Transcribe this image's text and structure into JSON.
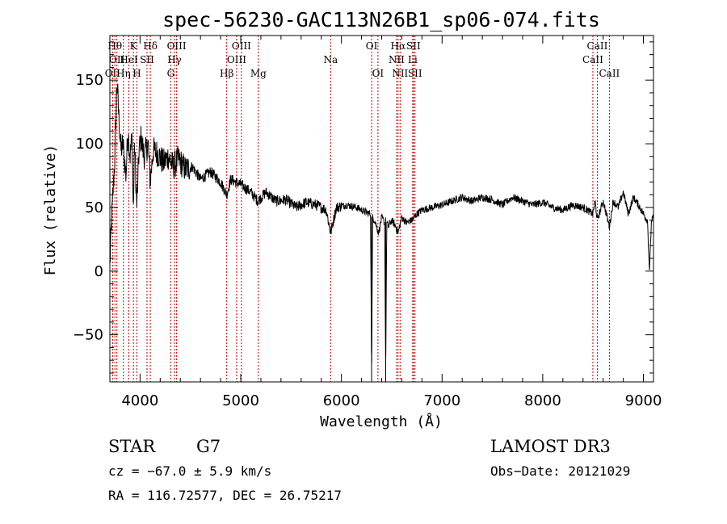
{
  "chart_data": {
    "type": "line",
    "title": "spec-56230-GAC113N26B1_sp06-074.fits",
    "xlabel": "Wavelength (Å)",
    "ylabel": "Flux (relative)",
    "xlim": [
      3700,
      9100
    ],
    "ylim": [
      -87,
      185
    ],
    "xticks": [
      4000,
      5000,
      6000,
      7000,
      8000,
      9000
    ],
    "xtick_labels": [
      "4000",
      "5000",
      "6000",
      "7000",
      "8000",
      "9000"
    ],
    "yticks": [
      -50,
      0,
      50,
      100,
      150
    ],
    "ytick_labels": [
      "−50",
      "0",
      "50",
      "100",
      "150"
    ],
    "series": [
      {
        "name": "flux",
        "x": [
          3700,
          3710,
          3730,
          3750,
          3770,
          3790,
          3810,
          3830,
          3860,
          3880,
          3900,
          3920,
          3933,
          3945,
          3968,
          3990,
          4010,
          4040,
          4080,
          4101,
          4130,
          4180,
          4230,
          4280,
          4330,
          4380,
          4450,
          4520,
          4600,
          4700,
          4800,
          4861,
          4900,
          5000,
          5100,
          5170,
          5250,
          5350,
          5450,
          5550,
          5650,
          5750,
          5850,
          5893,
          5950,
          6050,
          6150,
          6250,
          6290,
          6300,
          6310,
          6330,
          6370,
          6400,
          6430,
          6440,
          6450,
          6470,
          6500,
          6540,
          6563,
          6600,
          6650,
          6700,
          6750,
          6800,
          6900,
          7000,
          7100,
          7200,
          7300,
          7400,
          7500,
          7600,
          7700,
          7800,
          7900,
          8000,
          8100,
          8200,
          8300,
          8400,
          8498,
          8520,
          8542,
          8600,
          8662,
          8700,
          8750,
          8800,
          8850,
          8900,
          8950,
          9000,
          9020,
          9040,
          9060,
          9080,
          9100
        ],
        "y": [
          5,
          25,
          60,
          90,
          150,
          120,
          95,
          100,
          75,
          110,
          90,
          105,
          45,
          100,
          50,
          95,
          105,
          90,
          100,
          70,
          95,
          92,
          85,
          90,
          82,
          88,
          80,
          82,
          72,
          78,
          70,
          60,
          72,
          68,
          62,
          55,
          62,
          55,
          56,
          50,
          54,
          52,
          48,
          30,
          50,
          52,
          50,
          46,
          45,
          -85,
          42,
          40,
          30,
          42,
          38,
          -85,
          38,
          35,
          40,
          35,
          30,
          42,
          38,
          40,
          45,
          48,
          50,
          52,
          55,
          58,
          55,
          58,
          56,
          52,
          58,
          55,
          52,
          54,
          50,
          48,
          52,
          50,
          45,
          55,
          40,
          55,
          35,
          55,
          50,
          62,
          45,
          58,
          52,
          45,
          42,
          40,
          0,
          40,
          42
        ],
        "color": "#000000"
      }
    ],
    "lines": [
      {
        "label": "OII",
        "wave": 3727,
        "row": 2
      },
      {
        "label": "Hθ",
        "wave": 3750,
        "row": 0
      },
      {
        "label": "OII",
        "wave": 3770,
        "row": 1
      },
      {
        "label": "Hη",
        "wave": 3835,
        "row": 2
      },
      {
        "label": "HeI",
        "wave": 3889,
        "row": 1
      },
      {
        "label": "K",
        "wave": 3934,
        "row": 0
      },
      {
        "label": "H",
        "wave": 3969,
        "row": 2
      },
      {
        "label": "SII",
        "wave": 4069,
        "row": 1
      },
      {
        "label": "Hδ",
        "wave": 4102,
        "row": 0
      },
      {
        "label": "G",
        "wave": 4305,
        "row": 2
      },
      {
        "label": "Hγ",
        "wave": 4341,
        "row": 1
      },
      {
        "label": "OIII",
        "wave": 4363,
        "row": 0
      },
      {
        "label": "Hβ",
        "wave": 4861,
        "row": 2
      },
      {
        "label": "OIII",
        "wave": 4959,
        "row": 1
      },
      {
        "label": "OIII",
        "wave": 5007,
        "row": 0
      },
      {
        "label": "Mg",
        "wave": 5175,
        "row": 2
      },
      {
        "label": "Na",
        "wave": 5893,
        "row": 1
      },
      {
        "label": "OI",
        "wave": 6300,
        "row": 0
      },
      {
        "label": "OI",
        "wave": 6363,
        "row": 2
      },
      {
        "label": "NII",
        "wave": 6548,
        "row": 1
      },
      {
        "label": "Hα",
        "wave": 6563,
        "row": 0
      },
      {
        "label": "NII",
        "wave": 6583,
        "row": 2
      },
      {
        "label": "Li",
        "wave": 6708,
        "row": 1
      },
      {
        "label": "SII",
        "wave": 6716,
        "row": 0
      },
      {
        "label": "SII",
        "wave": 6731,
        "row": 2
      },
      {
        "label": "CaII",
        "wave": 8498,
        "row": 1
      },
      {
        "label": "CaII",
        "wave": 8542,
        "row": 0
      },
      {
        "label": "CaII",
        "wave": 8662,
        "row": 2
      }
    ],
    "line_color": "#c00000"
  },
  "info": {
    "class_label": "STAR",
    "subclass_label": "G7",
    "survey_label": "LAMOST DR3",
    "cz_text": "cz = −67.0 ± 5.9 km/s",
    "obsdate_text": "Obs−Date: 20121029",
    "radec_text": "RA = 116.72577, DEC =  26.75217"
  }
}
